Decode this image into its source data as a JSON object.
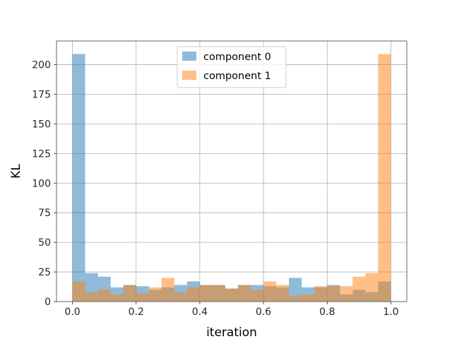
{
  "chart_data": {
    "type": "bar",
    "histogram": true,
    "xlabel": "iteration",
    "ylabel": "KL",
    "xlim": [
      -0.05,
      1.05
    ],
    "ylim": [
      0,
      220
    ],
    "xticks": [
      0.0,
      0.2,
      0.4,
      0.6,
      0.8,
      1.0
    ],
    "xtick_labels": [
      "0.0",
      "0.2",
      "0.4",
      "0.6",
      "0.8",
      "1.0"
    ],
    "yticks": [
      0,
      25,
      50,
      75,
      100,
      125,
      150,
      175,
      200
    ],
    "ytick_labels": [
      "0",
      "25",
      "50",
      "75",
      "100",
      "125",
      "150",
      "175",
      "200"
    ],
    "grid": true,
    "legend_position": "top-center",
    "bin_edges": [
      0.0,
      0.04,
      0.08,
      0.12,
      0.16,
      0.2,
      0.24,
      0.28,
      0.32,
      0.36,
      0.4,
      0.44,
      0.48,
      0.52,
      0.56,
      0.6,
      0.64,
      0.68,
      0.72,
      0.76,
      0.8,
      0.84,
      0.88,
      0.92,
      0.96,
      1.0
    ],
    "series": [
      {
        "name": "component 0",
        "color": "#1f77b4",
        "alpha": 0.5,
        "values": [
          209,
          24,
          21,
          12,
          14,
          13,
          10,
          12,
          14,
          17,
          14,
          14,
          11,
          14,
          14,
          13,
          12,
          20,
          12,
          12,
          14,
          6,
          10,
          8,
          17
        ]
      },
      {
        "name": "component 1",
        "color": "#ff7f0e",
        "alpha": 0.5,
        "values": [
          17,
          8,
          10,
          6,
          14,
          7,
          12,
          20,
          8,
          12,
          14,
          14,
          11,
          14,
          10,
          17,
          14,
          5,
          6,
          13,
          13,
          13,
          21,
          24,
          209
        ]
      }
    ]
  }
}
